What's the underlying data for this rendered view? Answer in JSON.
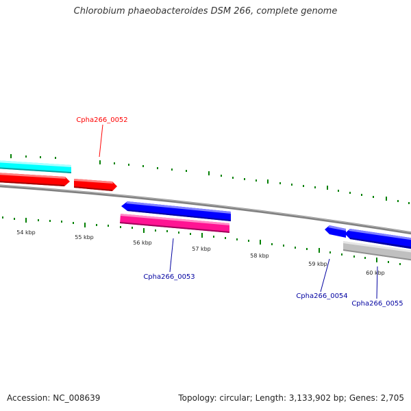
{
  "title": "Chlorobium phaeobacteroides DSM 266, complete genome",
  "footer": {
    "accession": "Accession: NC_008639",
    "summary": "Topology: circular; Length: 3,133,902 bp; Genes: 2,705"
  },
  "colors": {
    "forward_gene": "#ff0000",
    "reverse_gene": "#0000ff",
    "cyan_feature": "#00ffff",
    "pink_feature": "#ff1493",
    "gray_feature": "#c0c0c0",
    "tick": "#008000",
    "backbone": "#808080"
  },
  "chart_data": {
    "type": "genome-map",
    "unit": "kbp",
    "tick_labels": [
      "54 kbp",
      "55 kbp",
      "56 kbp",
      "57 kbp",
      "58 kbp",
      "59 kbp",
      "60 kbp"
    ],
    "gene_labels": [
      {
        "id": "Cpha266_0052",
        "strand": "forward"
      },
      {
        "id": "Cpha266_0053",
        "strand": "reverse"
      },
      {
        "id": "Cpha266_0054",
        "strand": "reverse"
      },
      {
        "id": "Cpha266_0055",
        "strand": "reverse"
      }
    ]
  }
}
